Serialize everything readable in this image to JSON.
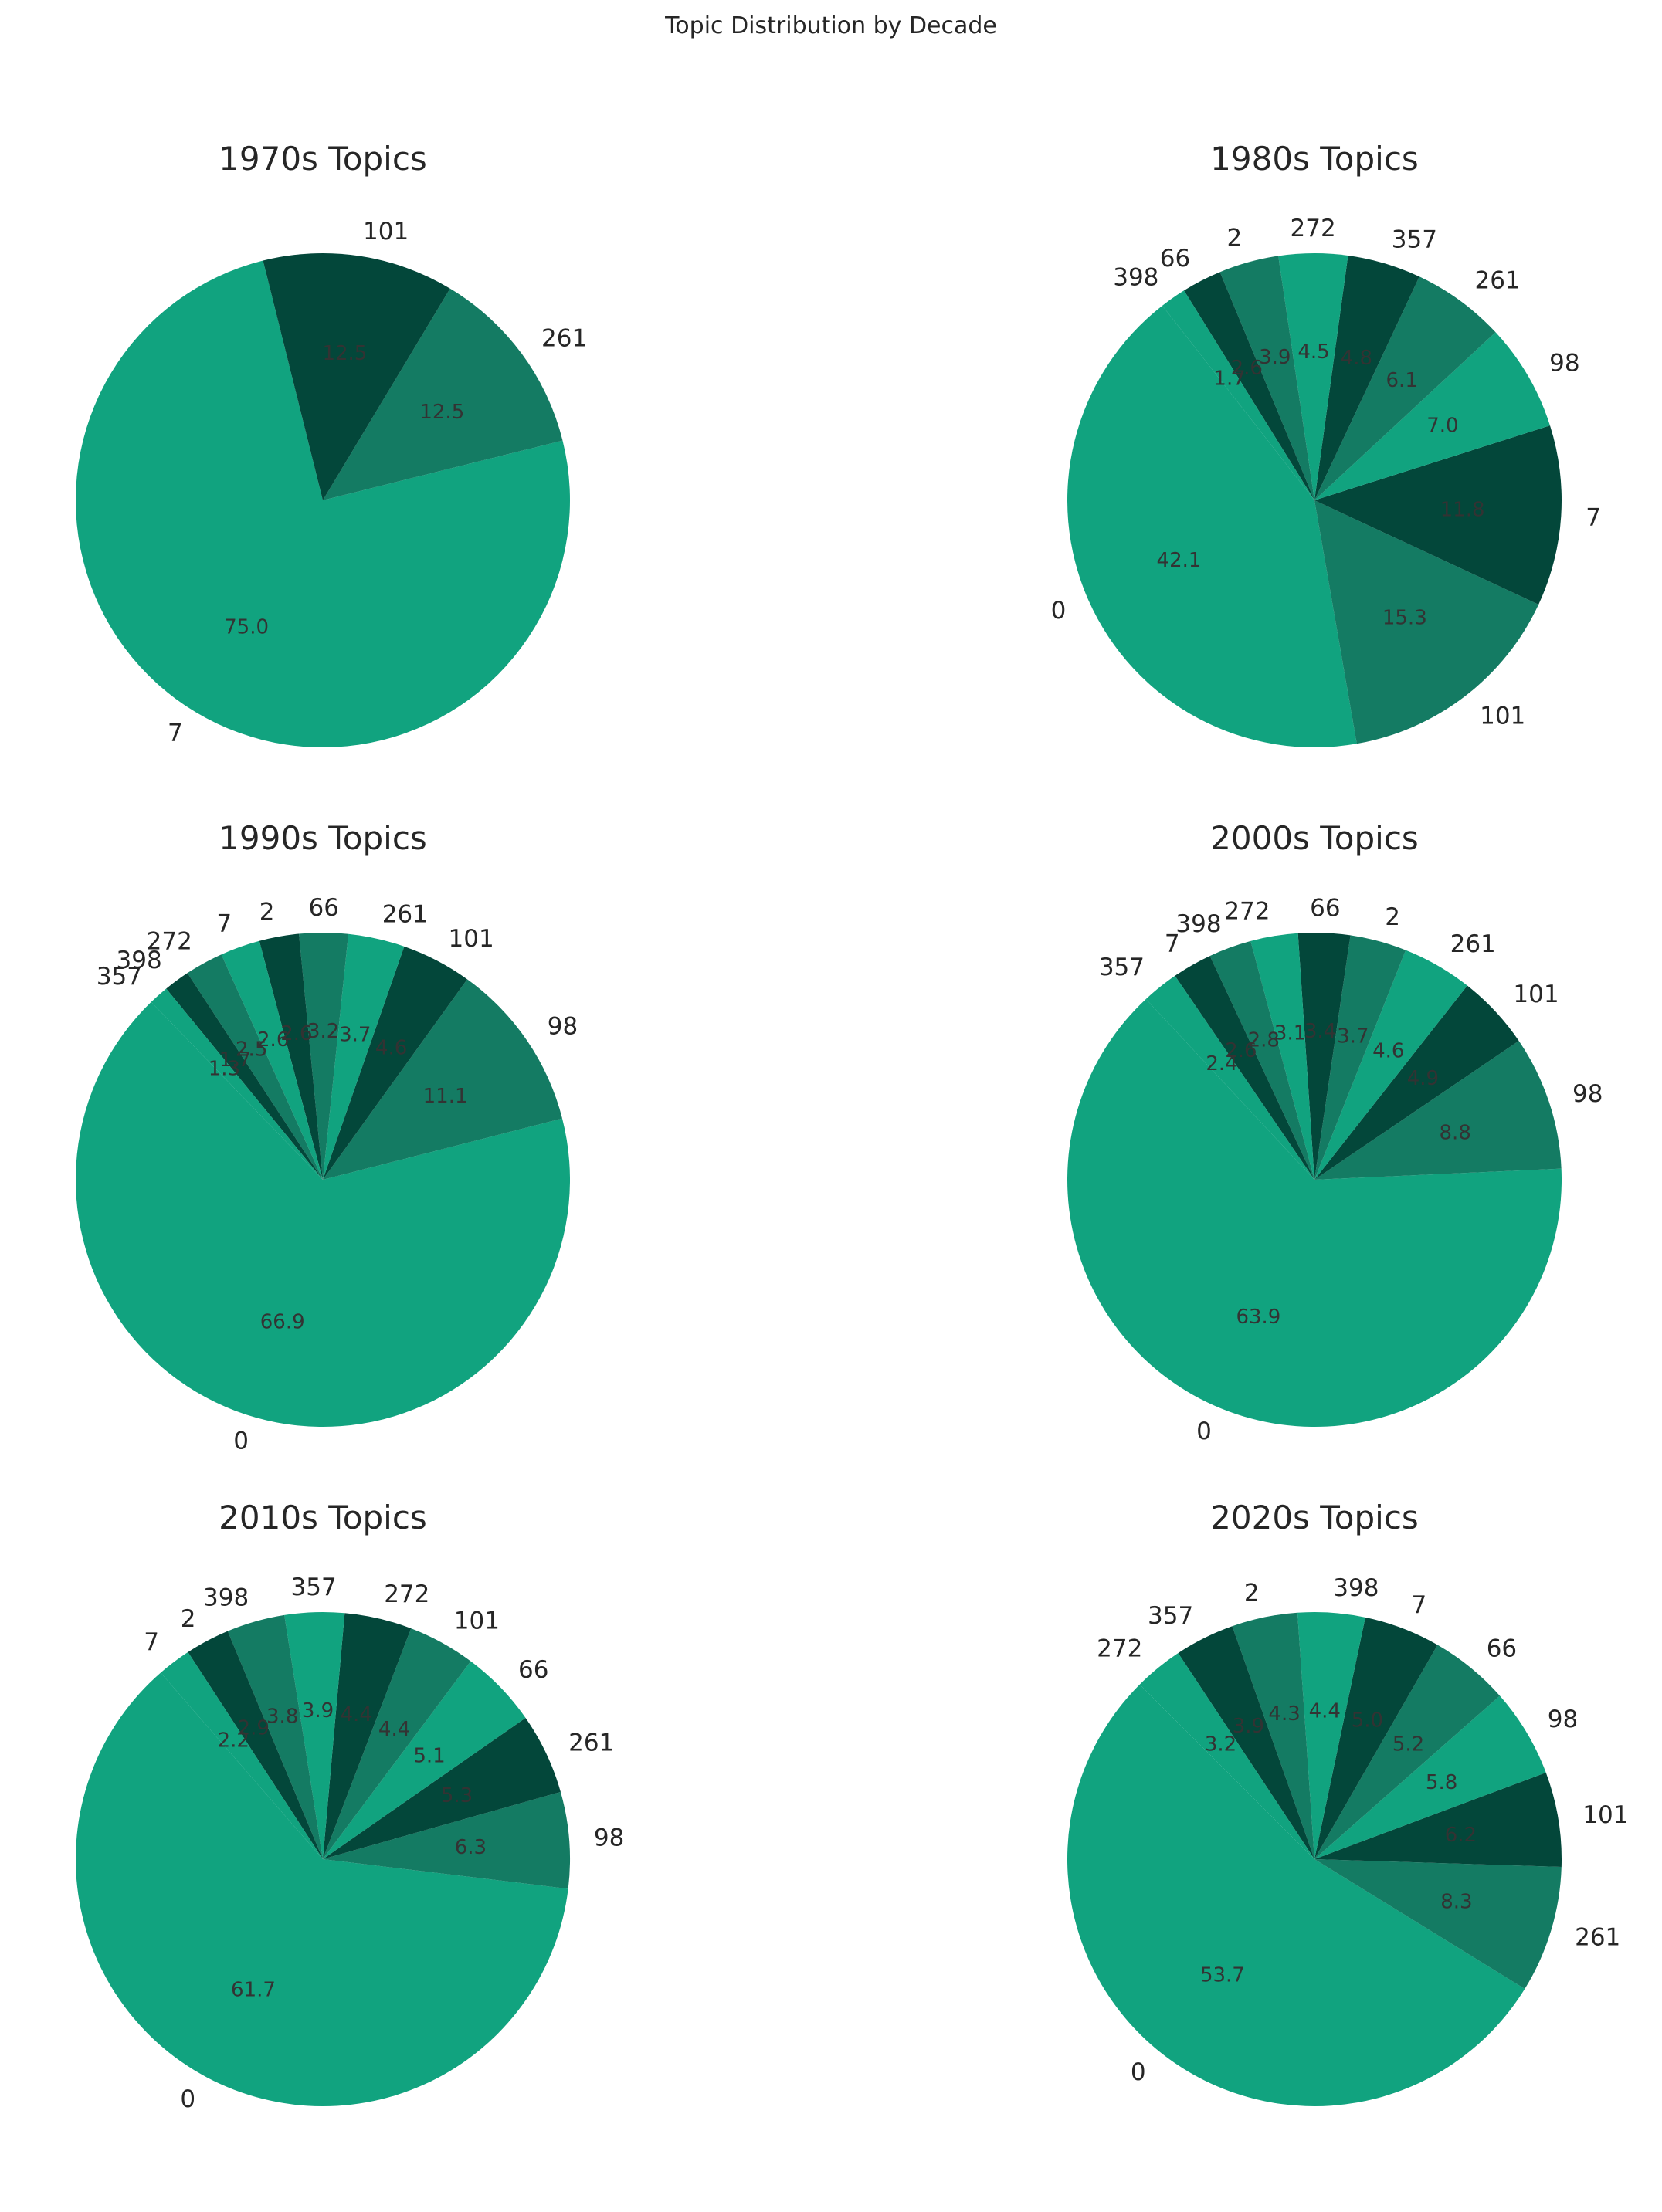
{
  "page_title": "Topic Distribution by Decade",
  "palette": [
    "#11a37f",
    "#147b63",
    "#03473a"
  ],
  "chart_data": [
    {
      "type": "pie",
      "title": "1970s Topics",
      "start_angle": 104,
      "slices": [
        {
          "label": "7",
          "value": 75.0,
          "color": "#11a37f",
          "pct_label": "75.0"
        },
        {
          "label": "261",
          "value": 12.5,
          "color": "#147b63",
          "pct_label": "12.5"
        },
        {
          "label": "101",
          "value": 12.5,
          "color": "#03473a",
          "pct_label": "12.5"
        }
      ]
    },
    {
      "type": "pie",
      "title": "1980s Topics",
      "start_angle": 128,
      "slices": [
        {
          "label": "0",
          "value": 42.1,
          "color": "#11a37f",
          "pct_label": "42.1"
        },
        {
          "label": "101",
          "value": 15.3,
          "color": "#147b63",
          "pct_label": "15.3"
        },
        {
          "label": "7",
          "value": 11.8,
          "color": "#03473a",
          "pct_label": "11.8"
        },
        {
          "label": "98",
          "value": 7.0,
          "color": "#11a37f",
          "pct_label": "7.0"
        },
        {
          "label": "261",
          "value": 6.1,
          "color": "#147b63",
          "pct_label": "6.1"
        },
        {
          "label": "357",
          "value": 4.8,
          "color": "#03473a",
          "pct_label": "4.8"
        },
        {
          "label": "272",
          "value": 4.5,
          "color": "#11a37f",
          "pct_label": "4.5"
        },
        {
          "label": "2",
          "value": 3.9,
          "color": "#147b63",
          "pct_label": "3.9"
        },
        {
          "label": "66",
          "value": 2.6,
          "color": "#03473a",
          "pct_label": "2.6"
        },
        {
          "label": "398",
          "value": 1.7,
          "color": "#11a37f",
          "pct_label": "1.7"
        }
      ]
    },
    {
      "type": "pie",
      "title": "1990s Topics",
      "start_angle": 134,
      "slices": [
        {
          "label": "0",
          "value": 66.9,
          "color": "#11a37f",
          "pct_label": "66.9"
        },
        {
          "label": "98",
          "value": 11.1,
          "color": "#147b63",
          "pct_label": "11.1"
        },
        {
          "label": "101",
          "value": 4.6,
          "color": "#03473a",
          "pct_label": "4.6"
        },
        {
          "label": "261",
          "value": 3.7,
          "color": "#11a37f",
          "pct_label": "3.7"
        },
        {
          "label": "66",
          "value": 3.2,
          "color": "#147b63",
          "pct_label": "3.2"
        },
        {
          "label": "2",
          "value": 2.6,
          "color": "#03473a",
          "pct_label": "2.6"
        },
        {
          "label": "7",
          "value": 2.6,
          "color": "#11a37f",
          "pct_label": "2.6"
        },
        {
          "label": "272",
          "value": 2.5,
          "color": "#147b63",
          "pct_label": "2.5"
        },
        {
          "label": "398",
          "value": 1.7,
          "color": "#03473a",
          "pct_label": "1.7"
        },
        {
          "label": "357",
          "value": 1.3,
          "color": "#11a37f",
          "pct_label": "1.3"
        }
      ]
    },
    {
      "type": "pie",
      "title": "2000s Topics",
      "start_angle": 133,
      "slices": [
        {
          "label": "0",
          "value": 63.9,
          "color": "#11a37f",
          "pct_label": "63.9"
        },
        {
          "label": "98",
          "value": 8.8,
          "color": "#147b63",
          "pct_label": "8.8"
        },
        {
          "label": "101",
          "value": 4.9,
          "color": "#03473a",
          "pct_label": "4.9"
        },
        {
          "label": "261",
          "value": 4.6,
          "color": "#11a37f",
          "pct_label": "4.6"
        },
        {
          "label": "2",
          "value": 3.7,
          "color": "#147b63",
          "pct_label": "3.7"
        },
        {
          "label": "66",
          "value": 3.4,
          "color": "#03473a",
          "pct_label": "3.4"
        },
        {
          "label": "272",
          "value": 3.1,
          "color": "#11a37f",
          "pct_label": "3.1"
        },
        {
          "label": "398",
          "value": 2.8,
          "color": "#147b63",
          "pct_label": "2.8"
        },
        {
          "label": "7",
          "value": 2.6,
          "color": "#03473a",
          "pct_label": "2.6"
        },
        {
          "label": "357",
          "value": 2.4,
          "color": "#11a37f",
          "pct_label": "2.4"
        }
      ]
    },
    {
      "type": "pie",
      "title": "2010s Topics",
      "start_angle": 131,
      "slices": [
        {
          "label": "0",
          "value": 61.7,
          "color": "#11a37f",
          "pct_label": "61.7"
        },
        {
          "label": "98",
          "value": 6.3,
          "color": "#147b63",
          "pct_label": "6.3"
        },
        {
          "label": "261",
          "value": 5.3,
          "color": "#03473a",
          "pct_label": "5.3"
        },
        {
          "label": "66",
          "value": 5.1,
          "color": "#11a37f",
          "pct_label": "5.1"
        },
        {
          "label": "101",
          "value": 4.4,
          "color": "#147b63",
          "pct_label": "4.4"
        },
        {
          "label": "272",
          "value": 4.4,
          "color": "#03473a",
          "pct_label": "4.4"
        },
        {
          "label": "357",
          "value": 3.9,
          "color": "#11a37f",
          "pct_label": "3.9"
        },
        {
          "label": "398",
          "value": 3.8,
          "color": "#147b63",
          "pct_label": "3.8"
        },
        {
          "label": "2",
          "value": 2.9,
          "color": "#03473a",
          "pct_label": "2.9"
        },
        {
          "label": "7",
          "value": 2.2,
          "color": "#11a37f",
          "pct_label": "2.2"
        }
      ]
    },
    {
      "type": "pie",
      "title": "2020s Topics",
      "start_angle": 135,
      "slices": [
        {
          "label": "0",
          "value": 53.7,
          "color": "#11a37f",
          "pct_label": "53.7"
        },
        {
          "label": "261",
          "value": 8.3,
          "color": "#147b63",
          "pct_label": "8.3"
        },
        {
          "label": "101",
          "value": 6.2,
          "color": "#03473a",
          "pct_label": "6.2"
        },
        {
          "label": "98",
          "value": 5.8,
          "color": "#11a37f",
          "pct_label": "5.8"
        },
        {
          "label": "66",
          "value": 5.2,
          "color": "#147b63",
          "pct_label": "5.2"
        },
        {
          "label": "7",
          "value": 5.0,
          "color": "#03473a",
          "pct_label": "5.0"
        },
        {
          "label": "398",
          "value": 4.4,
          "color": "#11a37f",
          "pct_label": "4.4"
        },
        {
          "label": "2",
          "value": 4.3,
          "color": "#147b63",
          "pct_label": "4.3"
        },
        {
          "label": "357",
          "value": 3.9,
          "color": "#03473a",
          "pct_label": "3.9"
        },
        {
          "label": "272",
          "value": 3.2,
          "color": "#11a37f",
          "pct_label": "3.2"
        }
      ]
    }
  ]
}
